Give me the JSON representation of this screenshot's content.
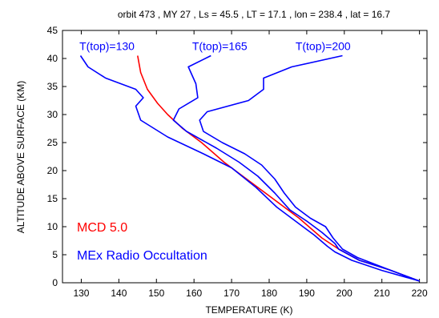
{
  "chart_data": {
    "type": "line",
    "title": "orbit 473 , MY 27 , Ls = 45.5 , LT = 17.1 , lon = 238.4 , lat = 16.7",
    "xlabel": "TEMPERATURE (K)",
    "ylabel": "ALTITUDE ABOVE SURFACE (KM)",
    "xlim": [
      125,
      222
    ],
    "ylim": [
      0,
      45
    ],
    "xticks": [
      130,
      140,
      150,
      160,
      170,
      180,
      190,
      200,
      210,
      220
    ],
    "yticks": [
      0,
      5,
      10,
      15,
      20,
      25,
      30,
      35,
      40,
      45
    ],
    "grid": false,
    "legend": [
      {
        "label": "MCD 5.0",
        "color": "#ff0000"
      },
      {
        "label": "MEx Radio Occultation",
        "color": "#0000ff"
      }
    ],
    "annotations": [
      {
        "text": "T(top)=130",
        "x": 129.5,
        "y": 41.5
      },
      {
        "text": "T(top)=165",
        "x": 159.5,
        "y": 41.5
      },
      {
        "text": "T(top)=200",
        "x": 187,
        "y": 41.5
      }
    ],
    "series": [
      {
        "color": "#ff0000",
        "points": [
          [
            145,
            40.5
          ],
          [
            145.8,
            37.5
          ],
          [
            147.6,
            34.5
          ],
          [
            150.3,
            32
          ],
          [
            153,
            30
          ],
          [
            157,
            27.5
          ],
          [
            162,
            25
          ],
          [
            168,
            21.5
          ],
          [
            174,
            18.5
          ],
          [
            181,
            15
          ],
          [
            188,
            11.5
          ],
          [
            194,
            8
          ],
          [
            198.5,
            6
          ],
          [
            204,
            4
          ],
          [
            212,
            2.3
          ],
          [
            220,
            0.3
          ]
        ]
      },
      {
        "color": "#0000ff",
        "points": [
          [
            129.8,
            40.5
          ],
          [
            131.8,
            38.5
          ],
          [
            136.5,
            36.5
          ],
          [
            144.5,
            34.5
          ],
          [
            146.5,
            33
          ],
          [
            144.5,
            31.5
          ],
          [
            145.8,
            29
          ],
          [
            153,
            26
          ],
          [
            162.5,
            23
          ],
          [
            170,
            20.5
          ],
          [
            176.5,
            17
          ],
          [
            182,
            13.5
          ],
          [
            187,
            11
          ],
          [
            192,
            8.5
          ],
          [
            195.5,
            6.5
          ],
          [
            197.5,
            5.5
          ],
          [
            202,
            4
          ],
          [
            210,
            2.2
          ],
          [
            220,
            0.3
          ]
        ]
      },
      {
        "color": "#0000ff",
        "points": [
          [
            164.5,
            40.5
          ],
          [
            158.5,
            38.5
          ],
          [
            160.5,
            35.5
          ],
          [
            161,
            33
          ],
          [
            156,
            31
          ],
          [
            154.5,
            29
          ],
          [
            158,
            27
          ],
          [
            166,
            24
          ],
          [
            172,
            21.5
          ],
          [
            177,
            19
          ],
          [
            181.5,
            16
          ],
          [
            185.5,
            13
          ],
          [
            190,
            11
          ],
          [
            194,
            9
          ],
          [
            197.5,
            7
          ],
          [
            198.5,
            6
          ],
          [
            204,
            4
          ],
          [
            212,
            2.3
          ],
          [
            220,
            0.3
          ]
        ]
      },
      {
        "color": "#0000ff",
        "points": [
          [
            199.5,
            40.5
          ],
          [
            186,
            38.5
          ],
          [
            178.5,
            36.5
          ],
          [
            178.5,
            34.5
          ],
          [
            174.5,
            32.5
          ],
          [
            163.5,
            30.5
          ],
          [
            161.5,
            29
          ],
          [
            162.5,
            27
          ],
          [
            167.5,
            25
          ],
          [
            173.5,
            23
          ],
          [
            178,
            21
          ],
          [
            181.5,
            18.5
          ],
          [
            184,
            16
          ],
          [
            187,
            13.5
          ],
          [
            191,
            11.5
          ],
          [
            195,
            10
          ],
          [
            197,
            8
          ],
          [
            199.5,
            6
          ],
          [
            203.5,
            4.5
          ],
          [
            212,
            2.3
          ],
          [
            220,
            0.3
          ]
        ]
      }
    ]
  }
}
